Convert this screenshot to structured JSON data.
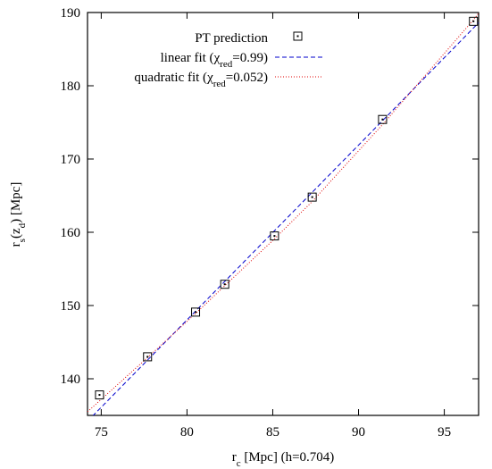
{
  "chart_data": {
    "type": "scatter",
    "xlabel": {
      "main": "r",
      "sub": "c",
      "rest": " [Mpc] (h=0.704)"
    },
    "ylabel": {
      "main": "r",
      "sub1": "s",
      "mid": "(z",
      "sub2": "d",
      "rest": ") [Mpc]"
    },
    "xlim": [
      74.2,
      97
    ],
    "ylim": [
      135,
      190
    ],
    "xticks": [
      75,
      80,
      85,
      90,
      95
    ],
    "yticks": [
      140,
      150,
      160,
      170,
      180,
      190
    ],
    "grid": false,
    "legend_position": "top-right",
    "series": [
      {
        "name": "PT prediction",
        "kind": "points",
        "marker": "square",
        "color": "#000000",
        "x": [
          74.9,
          77.7,
          80.5,
          82.2,
          85.1,
          87.3,
          91.4,
          96.7
        ],
        "y": [
          137.8,
          143.0,
          149.1,
          152.9,
          159.5,
          164.8,
          175.4,
          188.8
        ]
      },
      {
        "name_parts": {
          "before": "linear fit (",
          "chi": "χ",
          "sub": "red",
          "after": "=0.99)"
        },
        "kind": "line",
        "style": "dashed",
        "color": "#0000cc",
        "x": [
          74.2,
          97
        ],
        "y": [
          134.2,
          188.6
        ]
      },
      {
        "name_parts": {
          "before": "quadratic fit (",
          "chi": "χ",
          "sub": "red",
          "after": "=0.052)"
        },
        "kind": "line",
        "style": "dotted",
        "color": "#e00000",
        "x": [
          74.2,
          77.7,
          80.5,
          82.2,
          85.1,
          87.3,
          91.4,
          96.7,
          97
        ],
        "y": [
          135.5,
          142.9,
          148.9,
          152.7,
          159.1,
          164.2,
          174.7,
          189.0,
          189.9
        ]
      }
    ]
  }
}
